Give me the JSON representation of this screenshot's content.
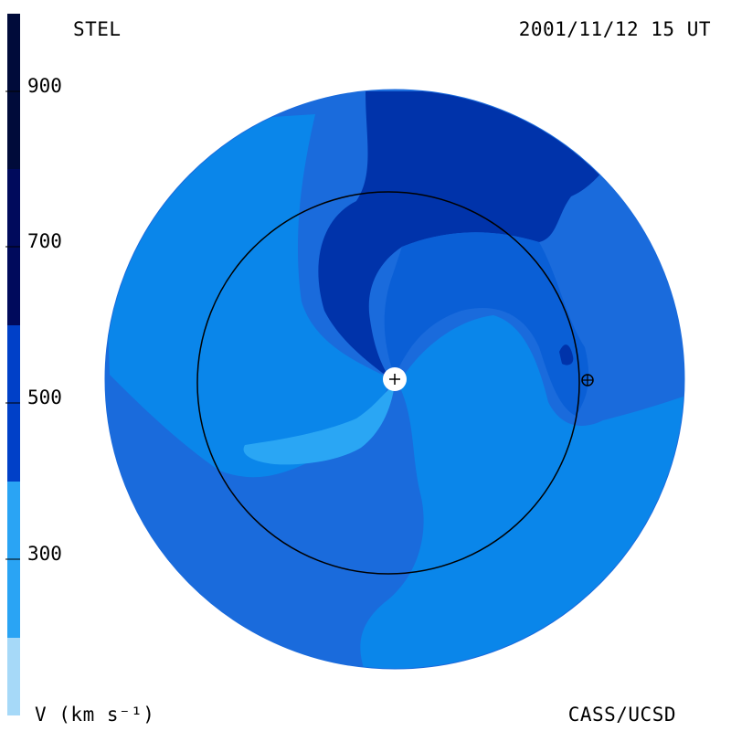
{
  "header": {
    "source": "STEL",
    "timestamp": "2001/11/12 15 UT"
  },
  "footer": {
    "units": "V (km s⁻¹)",
    "credit": "CASS/UCSD"
  },
  "colorbar": {
    "ticks": [
      "900",
      "700",
      "500",
      "300"
    ],
    "bands": [
      {
        "color": "#000b3a"
      },
      {
        "color": "#000a5c"
      },
      {
        "color": "#0020a0"
      },
      {
        "color": "#0040c8"
      },
      {
        "color": "#1a6bdc"
      },
      {
        "color": "#2aa4f4"
      },
      {
        "color": "#a6d9f8"
      }
    ]
  },
  "colors": {
    "disk_base": "#1a6bdc",
    "fast": "#0033aa",
    "medium": "#0a5fd6",
    "slow": "#0a86ea",
    "slowest": "#2aa6f4"
  },
  "markers": {
    "sun": "sun-marker",
    "earth": "earth-marker"
  }
}
